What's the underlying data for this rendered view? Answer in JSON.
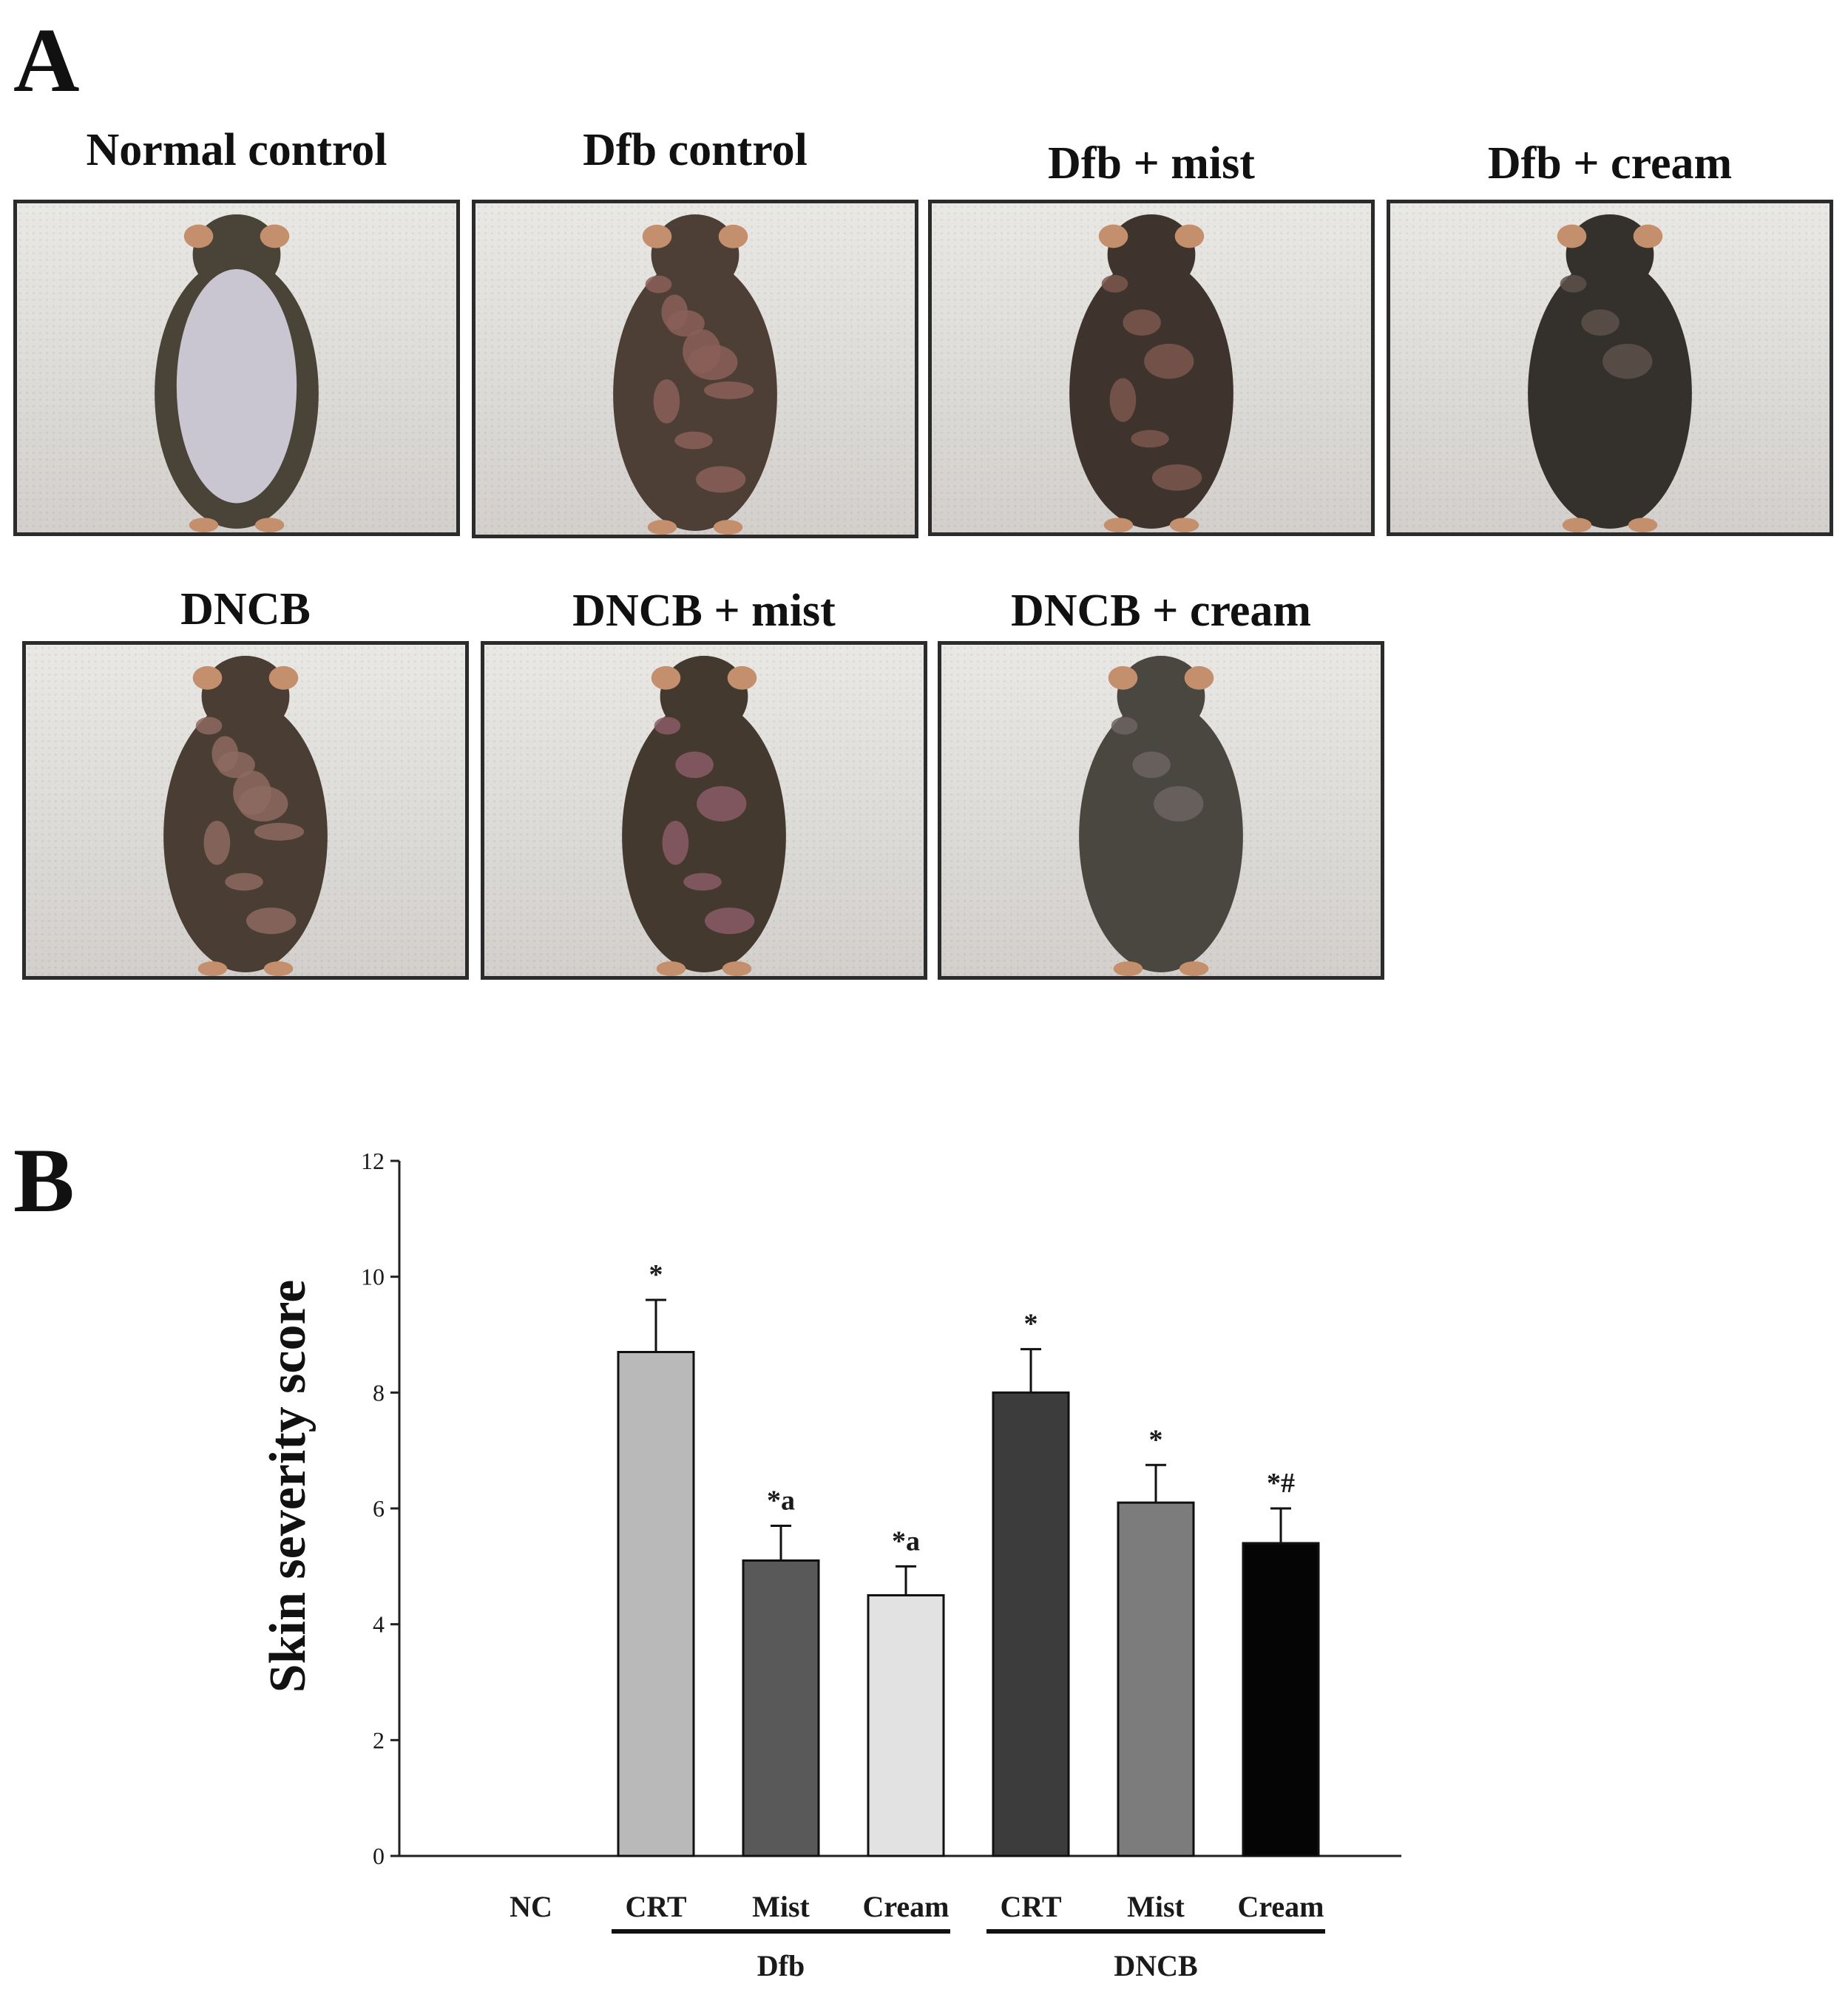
{
  "panel_a": {
    "letter": "A",
    "photos": [
      {
        "title": "Normal control",
        "fur": "#4a4338",
        "skin": "#c9c6d1",
        "lesion": "none"
      },
      {
        "title": "Dfb control",
        "fur": "#4d3f35",
        "skin": "#8a5f58",
        "lesion": "heavy"
      },
      {
        "title": "Dfb + mist",
        "fur": "#3e342d",
        "skin": "#7b574f",
        "lesion": "medium"
      },
      {
        "title": "Dfb + cream",
        "fur": "#34302c",
        "skin": "#5d504a",
        "lesion": "light"
      },
      {
        "title": "DNCB",
        "fur": "#4a3e34",
        "skin": "#8d6a60",
        "lesion": "heavy"
      },
      {
        "title": "DNCB + mist",
        "fur": "#43392f",
        "skin": "#8a5a66",
        "lesion": "medium"
      },
      {
        "title": "DNCB + cream",
        "fur": "#4a4640",
        "skin": "#6b6461",
        "lesion": "light"
      }
    ]
  },
  "panel_b": {
    "letter": "B"
  },
  "chart_data": {
    "type": "bar",
    "ylabel": "Skin severity score",
    "ylim": [
      0,
      12
    ],
    "yticks": [
      0,
      2,
      4,
      6,
      8,
      10,
      12
    ],
    "categories": [
      "NC",
      "CRT",
      "Mist",
      "Cream",
      "CRT",
      "Mist",
      "Cream"
    ],
    "values": [
      0,
      8.7,
      5.1,
      4.5,
      8.0,
      6.1,
      5.4
    ],
    "errors": [
      0,
      0.9,
      0.6,
      0.5,
      0.75,
      0.65,
      0.6
    ],
    "annotations": [
      "",
      "*",
      "*a",
      "*a",
      "*",
      "*",
      "*#"
    ],
    "colors": [
      "#ffffff",
      "#b9b9b9",
      "#595959",
      "#e2e2e2",
      "#3c3c3c",
      "#7c7c7c",
      "#050505"
    ],
    "groups": [
      {
        "label": "Dfb",
        "from": 1,
        "to": 3
      },
      {
        "label": "DNCB",
        "from": 4,
        "to": 6
      }
    ]
  }
}
